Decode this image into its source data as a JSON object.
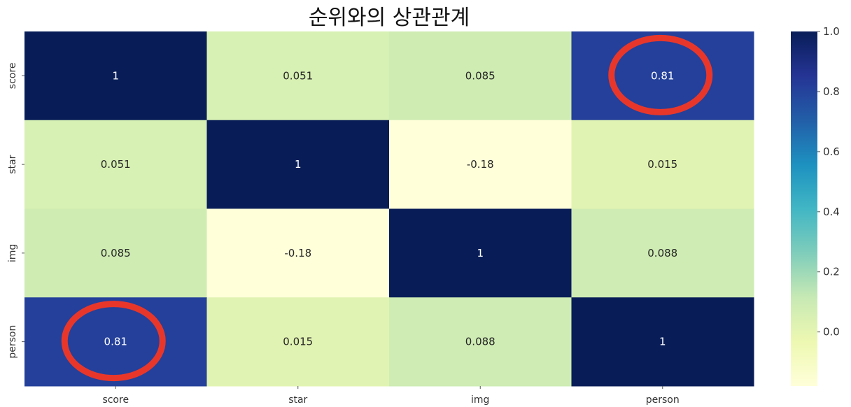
{
  "chart_data": {
    "type": "heatmap",
    "title": "순위와의 상관관계",
    "x_labels": [
      "score",
      "star",
      "img",
      "person"
    ],
    "y_labels": [
      "score",
      "star",
      "img",
      "person"
    ],
    "values": [
      [
        1,
        0.051,
        0.085,
        0.81
      ],
      [
        0.051,
        1,
        -0.18,
        0.015
      ],
      [
        0.085,
        -0.18,
        1,
        0.088
      ],
      [
        0.81,
        0.015,
        0.088,
        1
      ]
    ],
    "cell_labels": [
      [
        "1",
        "0.051",
        "0.085",
        "0.81"
      ],
      [
        "0.051",
        "1",
        "-0.18",
        "0.015"
      ],
      [
        "0.085",
        "-0.18",
        "1",
        "0.088"
      ],
      [
        "0.81",
        "0.015",
        "0.088",
        "1"
      ]
    ],
    "colormap": "YlGnBu",
    "vmin": -0.18,
    "vmax": 1.0,
    "colorbar": {
      "ticks": [
        0.0,
        0.2,
        0.4,
        0.6,
        0.8,
        1.0
      ],
      "tick_labels": [
        "0.0",
        "0.2",
        "0.4",
        "0.6",
        "0.8",
        "1.0"
      ]
    },
    "highlighted_cells": [
      [
        0,
        3
      ],
      [
        3,
        0
      ]
    ],
    "highlight_color": "#e8372a"
  }
}
